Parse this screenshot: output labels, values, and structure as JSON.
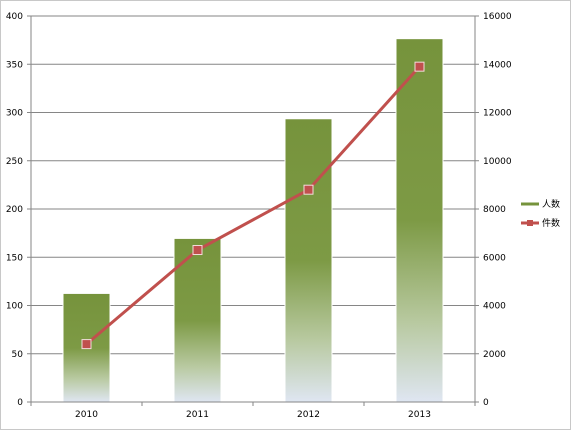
{
  "chart_data": {
    "type": "bar",
    "categories": [
      "2010",
      "2011",
      "2012",
      "2013"
    ],
    "series": [
      {
        "name": "人数",
        "type": "bar",
        "axis": "left",
        "color": "#76933c",
        "values": [
          112,
          169,
          293,
          376
        ]
      },
      {
        "name": "件数",
        "type": "line",
        "axis": "right",
        "color": "#c0504d",
        "marker_color": "#c0504d",
        "values": [
          2400,
          6300,
          8800,
          13900
        ]
      }
    ],
    "y_left": {
      "ylim": [
        0,
        400
      ],
      "ticks": [
        "0",
        "50",
        "100",
        "150",
        "200",
        "250",
        "300",
        "350",
        "400"
      ]
    },
    "y_right": {
      "ylim": [
        0,
        16000
      ],
      "ticks": [
        "0",
        "2000",
        "4000",
        "6000",
        "8000",
        "10000",
        "12000",
        "14000",
        "16000"
      ]
    },
    "grid": true,
    "legend_position": "right",
    "title": "",
    "xlabel": "",
    "ylabel": ""
  }
}
